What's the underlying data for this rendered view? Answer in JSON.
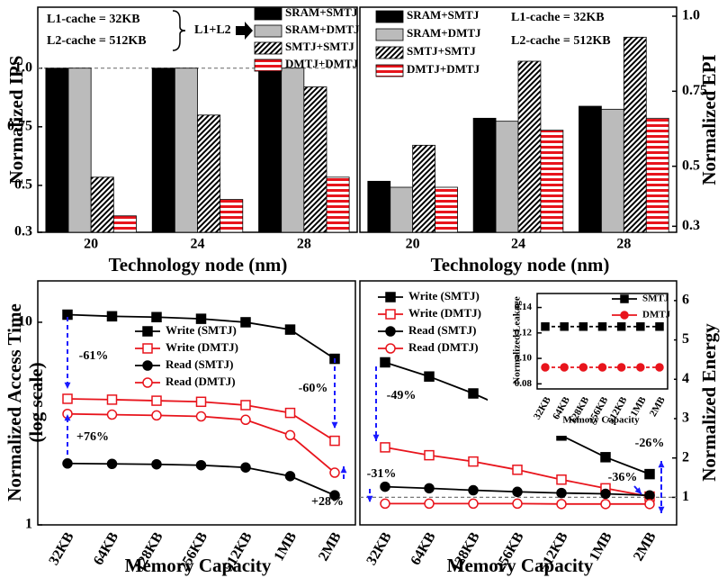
{
  "chart_data": [
    {
      "type": "bar",
      "ylabel": "Normalized IPS",
      "xlabel": "Technology node (nm)",
      "categories": [
        "20",
        "24",
        "28"
      ],
      "series": [
        {
          "name": "SRAM+SMTJ",
          "color": "#000000",
          "values": [
            1,
            1,
            1
          ]
        },
        {
          "name": "SRAM+DMTJ",
          "color": "#bbbbbb",
          "values": [
            1,
            1,
            1
          ]
        },
        {
          "name": "SMTJ+SMTJ",
          "color": "#000000",
          "hatch": "diagonal",
          "values": [
            0.535,
            0.8,
            0.92
          ]
        },
        {
          "name": "DMTJ+DMTJ",
          "color": "#e8141c",
          "hatch": "horizontal",
          "values": [
            0.37,
            0.44,
            0.535
          ]
        }
      ],
      "ylim": [
        0.3,
        1.26
      ],
      "yticks": [
        0.3,
        0.5,
        0.75,
        {
          "value": 1,
          "label": "1.0"
        }
      ],
      "hline": 1,
      "annotations": [
        "L1-cache = 32KB",
        "L2-cache = 512KB",
        "L1+L2"
      ]
    },
    {
      "type": "bar",
      "ylabel": "Normalized EPI",
      "xlabel": "Technology node (nm)",
      "categories": [
        "20",
        "24",
        "28"
      ],
      "series": [
        {
          "name": "SRAM+SMTJ",
          "color": "#000000",
          "values": [
            0.45,
            0.66,
            0.7
          ]
        },
        {
          "name": "SRAM+DMTJ",
          "color": "#bbbbbb",
          "values": [
            0.43,
            0.65,
            0.69
          ]
        },
        {
          "name": "SMTJ+SMTJ",
          "color": "#000000",
          "hatch": "diagonal",
          "values": [
            0.57,
            0.85,
            0.93
          ]
        },
        {
          "name": "DMTJ+DMTJ",
          "color": "#e8141c",
          "hatch": "horizontal",
          "values": [
            0.43,
            0.62,
            0.66
          ]
        }
      ],
      "ylim": [
        0.28,
        1.03
      ],
      "yticks": [
        0.3,
        0.5,
        0.75,
        {
          "value": 1,
          "label": "1.0"
        }
      ],
      "annotations": [
        "L1-cache = 32KB",
        "L2-cache = 512KB"
      ]
    },
    {
      "type": "line",
      "ylabel": [
        "Normalized Access Time",
        "(log scale)"
      ],
      "xlabel": "Memory Capacity",
      "categories": [
        "32KB",
        "64KB",
        "128KB",
        "256KB",
        "512KB",
        "1MB",
        "2MB"
      ],
      "series": [
        {
          "name": "Write (SMTJ)",
          "color": "#000000",
          "marker": "square",
          "filled": true,
          "values": [
            10.9,
            10.7,
            10.6,
            10.4,
            10.0,
            9.2,
            6.6
          ]
        },
        {
          "name": "Write (DMTJ)",
          "color": "#e8141c",
          "marker": "square",
          "filled": false,
          "values": [
            4.19,
            4.15,
            4.1,
            4.05,
            3.9,
            3.57,
            2.6
          ]
        },
        {
          "name": "Read (SMTJ)",
          "color": "#000000",
          "marker": "circle",
          "filled": true,
          "values": [
            2.01,
            2.0,
            1.99,
            1.97,
            1.92,
            1.74,
            1.4
          ]
        },
        {
          "name": "Read (DMTJ)",
          "color": "#e8141c",
          "marker": "circle",
          "filled": false,
          "values": [
            3.53,
            3.5,
            3.47,
            3.43,
            3.3,
            2.77,
            1.81
          ]
        }
      ],
      "log_scale": true,
      "ylim": [
        1,
        16
      ],
      "yticks": [
        1,
        10
      ],
      "annotations": [
        "-61%",
        "+76%",
        "-60%",
        "+28%"
      ]
    },
    {
      "type": "line",
      "ylabel": "Normalized Energy",
      "xlabel": "Memory Capacity",
      "categories": [
        "32KB",
        "64KB",
        "128KB",
        "256KB",
        "512KB",
        "1MB",
        "2MB"
      ],
      "series": [
        {
          "name": "Write (SMTJ)",
          "color": "#000000",
          "marker": "square",
          "filled": true,
          "values": [
            4.43,
            4.07,
            3.64,
            3.14,
            2.57,
            2.02,
            1.59
          ]
        },
        {
          "name": "Write (DMTJ)",
          "color": "#e8141c",
          "marker": "square",
          "filled": false,
          "values": [
            2.27,
            2.07,
            1.91,
            1.7,
            1.45,
            1.23,
            1.02
          ]
        },
        {
          "name": "Read (SMTJ)",
          "color": "#000000",
          "marker": "circle",
          "filled": true,
          "values": [
            1.27,
            1.23,
            1.18,
            1.14,
            1.11,
            1.09,
            1.05
          ]
        },
        {
          "name": "Read (DMTJ)",
          "color": "#e8141c",
          "marker": "circle",
          "filled": false,
          "values": [
            0.84,
            0.84,
            0.84,
            0.84,
            0.83,
            0.83,
            0.83
          ]
        }
      ],
      "ylim": [
        0.3,
        6.5
      ],
      "yticks": [
        1,
        2,
        3,
        4,
        5,
        6
      ],
      "hline": 1,
      "annotations": [
        "-49%",
        "-31%",
        "-36%",
        "-26%"
      ]
    },
    {
      "type": "line",
      "ylabel": "Normalized Leakage",
      "xlabel": "Memory Capacity",
      "categories": [
        "32KB",
        "64KB",
        "128KB",
        "256KB",
        "512KB",
        "1MB",
        "2MB"
      ],
      "series": [
        {
          "name": "SMTJ",
          "color": "#000000",
          "marker": "square",
          "filled": true,
          "dashed": true,
          "values": [
            0.125,
            0.125,
            0.125,
            0.125,
            0.125,
            0.125,
            0.125
          ]
        },
        {
          "name": "DMTJ",
          "color": "#e8141c",
          "marker": "circle",
          "filled": true,
          "dashed": true,
          "values": [
            0.093,
            0.093,
            0.093,
            0.093,
            0.093,
            0.093,
            0.093
          ]
        }
      ],
      "ylim": [
        0.076,
        0.151
      ],
      "yticks": [
        0.08,
        {
          "value": 0.1,
          "label": "0.10"
        },
        0.12,
        0.14
      ]
    }
  ]
}
